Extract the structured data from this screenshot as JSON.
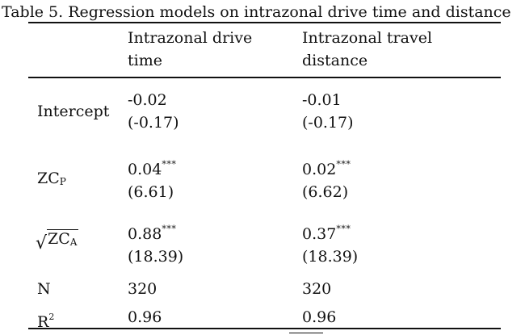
{
  "caption": "Table 5. Regression models on intrazonal drive time and distance",
  "columns": {
    "drive_time_line1": "Intrazonal drive",
    "drive_time_line2": "time",
    "travel_distance_line1": "Intrazonal travel",
    "travel_distance_line2": "distance"
  },
  "rows": {
    "intercept": {
      "label": "Intercept",
      "drive_coef": "-0.02",
      "drive_t": "(-0.17)",
      "dist_coef": "-0.01",
      "dist_t": "(-0.17)"
    },
    "zcp": {
      "label_base": "ZC",
      "label_sub": "P",
      "drive_coef": "0.04",
      "drive_sig": "***",
      "drive_t": "(6.61)",
      "dist_coef": "0.02",
      "dist_sig": "***",
      "dist_t": "(6.62)"
    },
    "sqrt_zca": {
      "label_radical": "√",
      "label_base": "ZC",
      "label_sub": "A",
      "drive_coef": "0.88",
      "drive_sig": "***",
      "drive_t": "(18.39)",
      "dist_coef": "0.37",
      "dist_sig": "***",
      "dist_t": "(18.39)"
    },
    "n": {
      "label": "N",
      "drive": "320",
      "dist": "320"
    },
    "r2": {
      "label_base": "R",
      "label_sup": "2",
      "drive": "0.96",
      "dist": "0.96"
    }
  }
}
